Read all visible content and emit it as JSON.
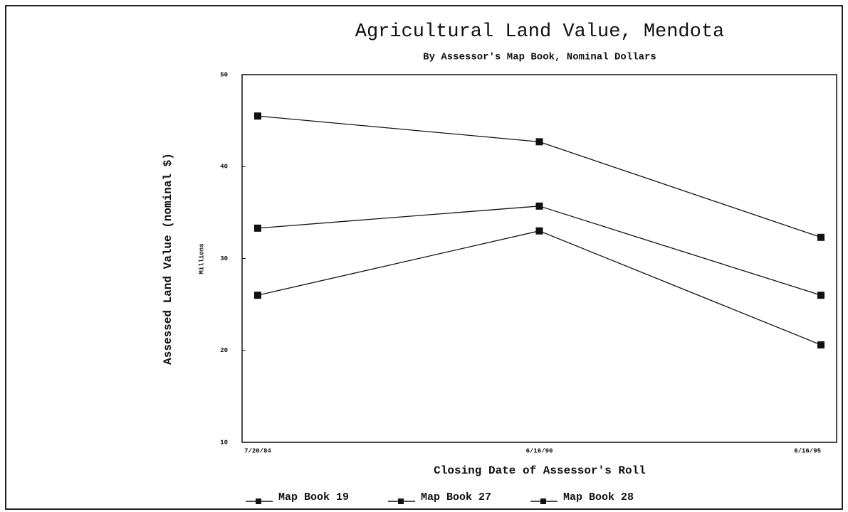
{
  "chart_data": {
    "type": "line",
    "title": "Agricultural Land Value, Mendota",
    "subtitle": "By Assessor's Map Book, Nominal Dollars",
    "x_label": "Closing Date of Assessor's Roll",
    "y_label": "Assessed Land Value (nominal $)",
    "y_unit": "Millions",
    "categories": [
      "7/20/84",
      "6/16/90",
      "6/16/95"
    ],
    "series": [
      {
        "name": "Map Book 19",
        "color": "#111111",
        "values": [
          45.5,
          42.7,
          32.3
        ]
      },
      {
        "name": "Map Book 27",
        "color": "#111111",
        "values": [
          33.3,
          35.7,
          26.0
        ]
      },
      {
        "name": "Map Book 28",
        "color": "#111111",
        "values": [
          26.0,
          33.0,
          20.6
        ]
      }
    ],
    "ylim": [
      10,
      50
    ],
    "yticks": [
      10,
      20,
      30,
      40,
      50
    ],
    "legend": "bottom"
  }
}
